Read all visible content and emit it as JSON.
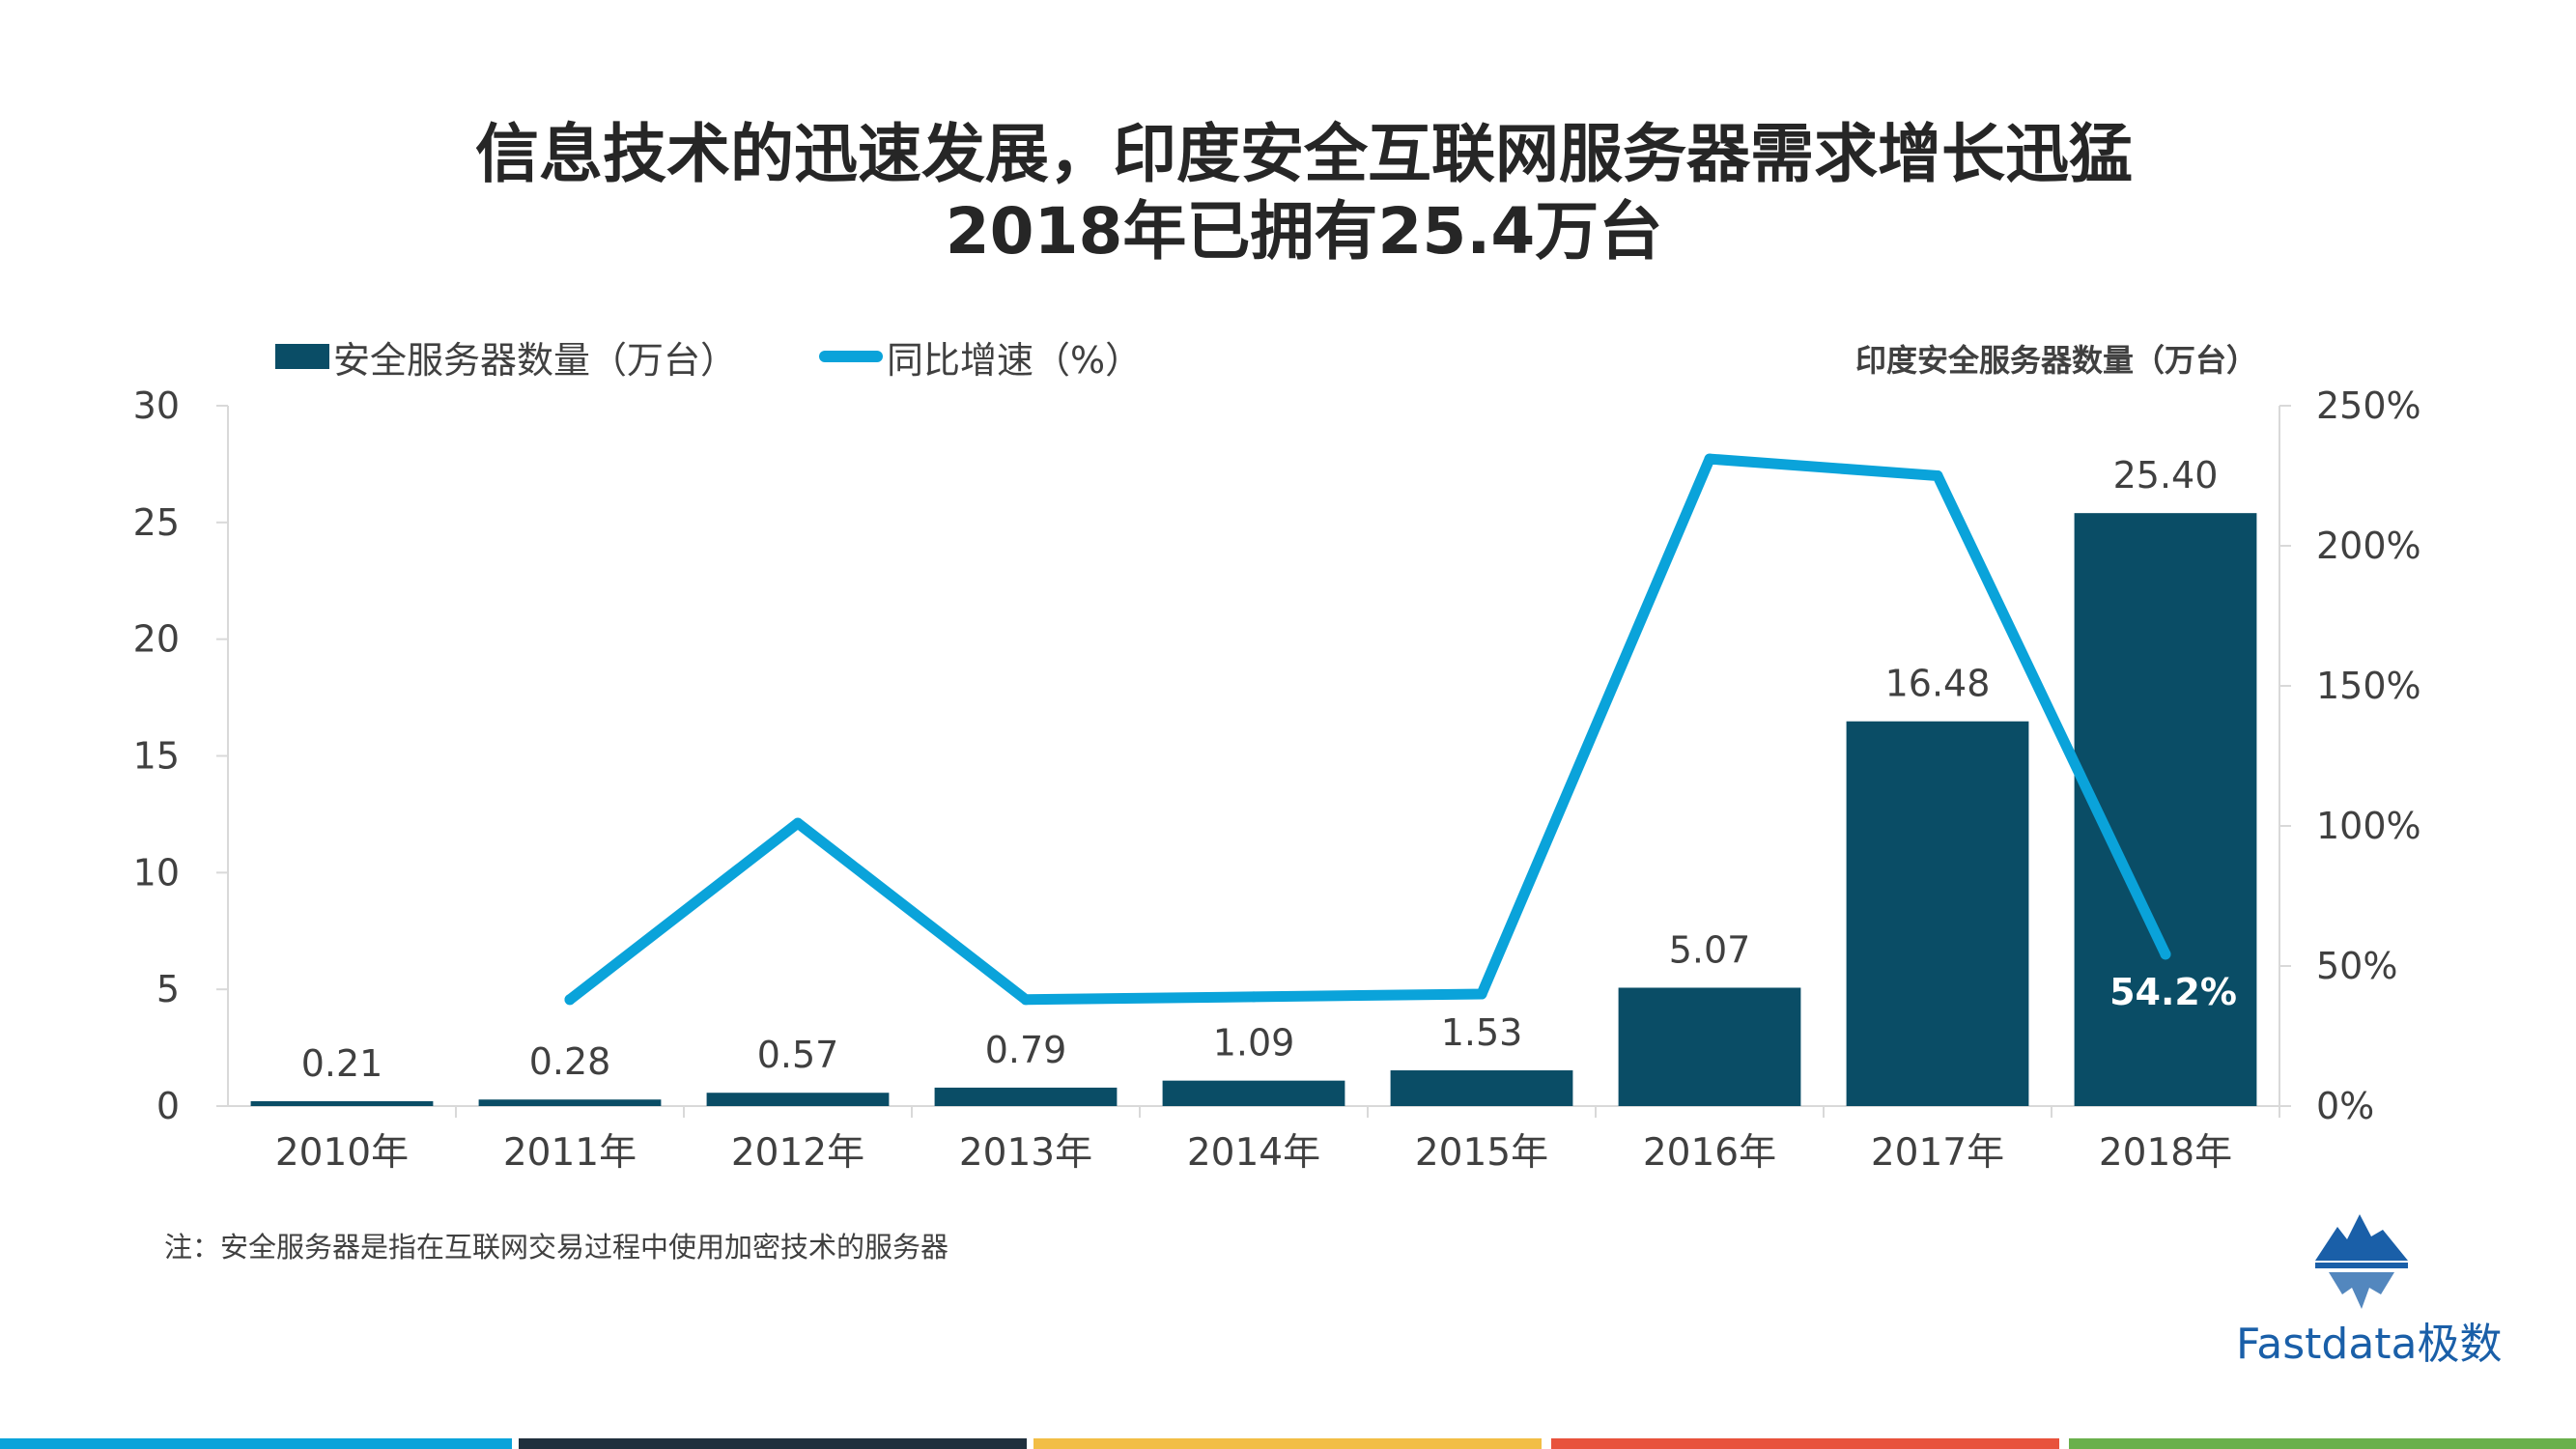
{
  "title_line1": "信息技术的迅速发展，印度安全互联网服务器需求增长迅猛",
  "title_line2": "2018年已拥有25.4万台",
  "legend": {
    "bar_label": "安全服务器数量（万台）",
    "line_label": "同比增速（%）"
  },
  "right_axis_title": "印度安全服务器数量（万台）",
  "note": "注：安全服务器是指在互联网交易过程中使用加密技术的服务器",
  "logo_text": "Fastdata极数",
  "colors": {
    "bar": "#0a4d66",
    "line": "#0aa3da",
    "strip": [
      "#0aa3da",
      "#1f2f3d",
      "#f2be45",
      "#e8523c",
      "#6ab04c"
    ]
  },
  "chart_data": {
    "type": "bar",
    "categories": [
      "2010年",
      "2011年",
      "2012年",
      "2013年",
      "2014年",
      "2015年",
      "2016年",
      "2017年",
      "2018年"
    ],
    "series": [
      {
        "name": "安全服务器数量（万台）",
        "type": "bar",
        "axis": "left",
        "values": [
          0.21,
          0.28,
          0.57,
          0.79,
          1.09,
          1.53,
          5.07,
          16.48,
          25.4
        ],
        "labels": [
          "0.21",
          "0.28",
          "0.57",
          "0.79",
          "1.09",
          "1.53",
          "5.07",
          "16.48",
          "25.40"
        ]
      },
      {
        "name": "同比增速（%）",
        "type": "line",
        "axis": "right",
        "values": [
          null,
          38,
          101,
          38,
          39,
          40,
          231,
          225,
          54.2
        ],
        "labels": [
          null,
          null,
          null,
          null,
          null,
          null,
          null,
          null,
          "54.2%"
        ]
      }
    ],
    "y_left": {
      "ticks": [
        "0",
        "5",
        "10",
        "15",
        "20",
        "25",
        "30"
      ],
      "min": 0,
      "max": 30
    },
    "y_right": {
      "ticks": [
        "0%",
        "50%",
        "100%",
        "150%",
        "200%",
        "250%"
      ],
      "min": 0,
      "max": 250
    },
    "grid": false,
    "legend_position": "top-left"
  }
}
